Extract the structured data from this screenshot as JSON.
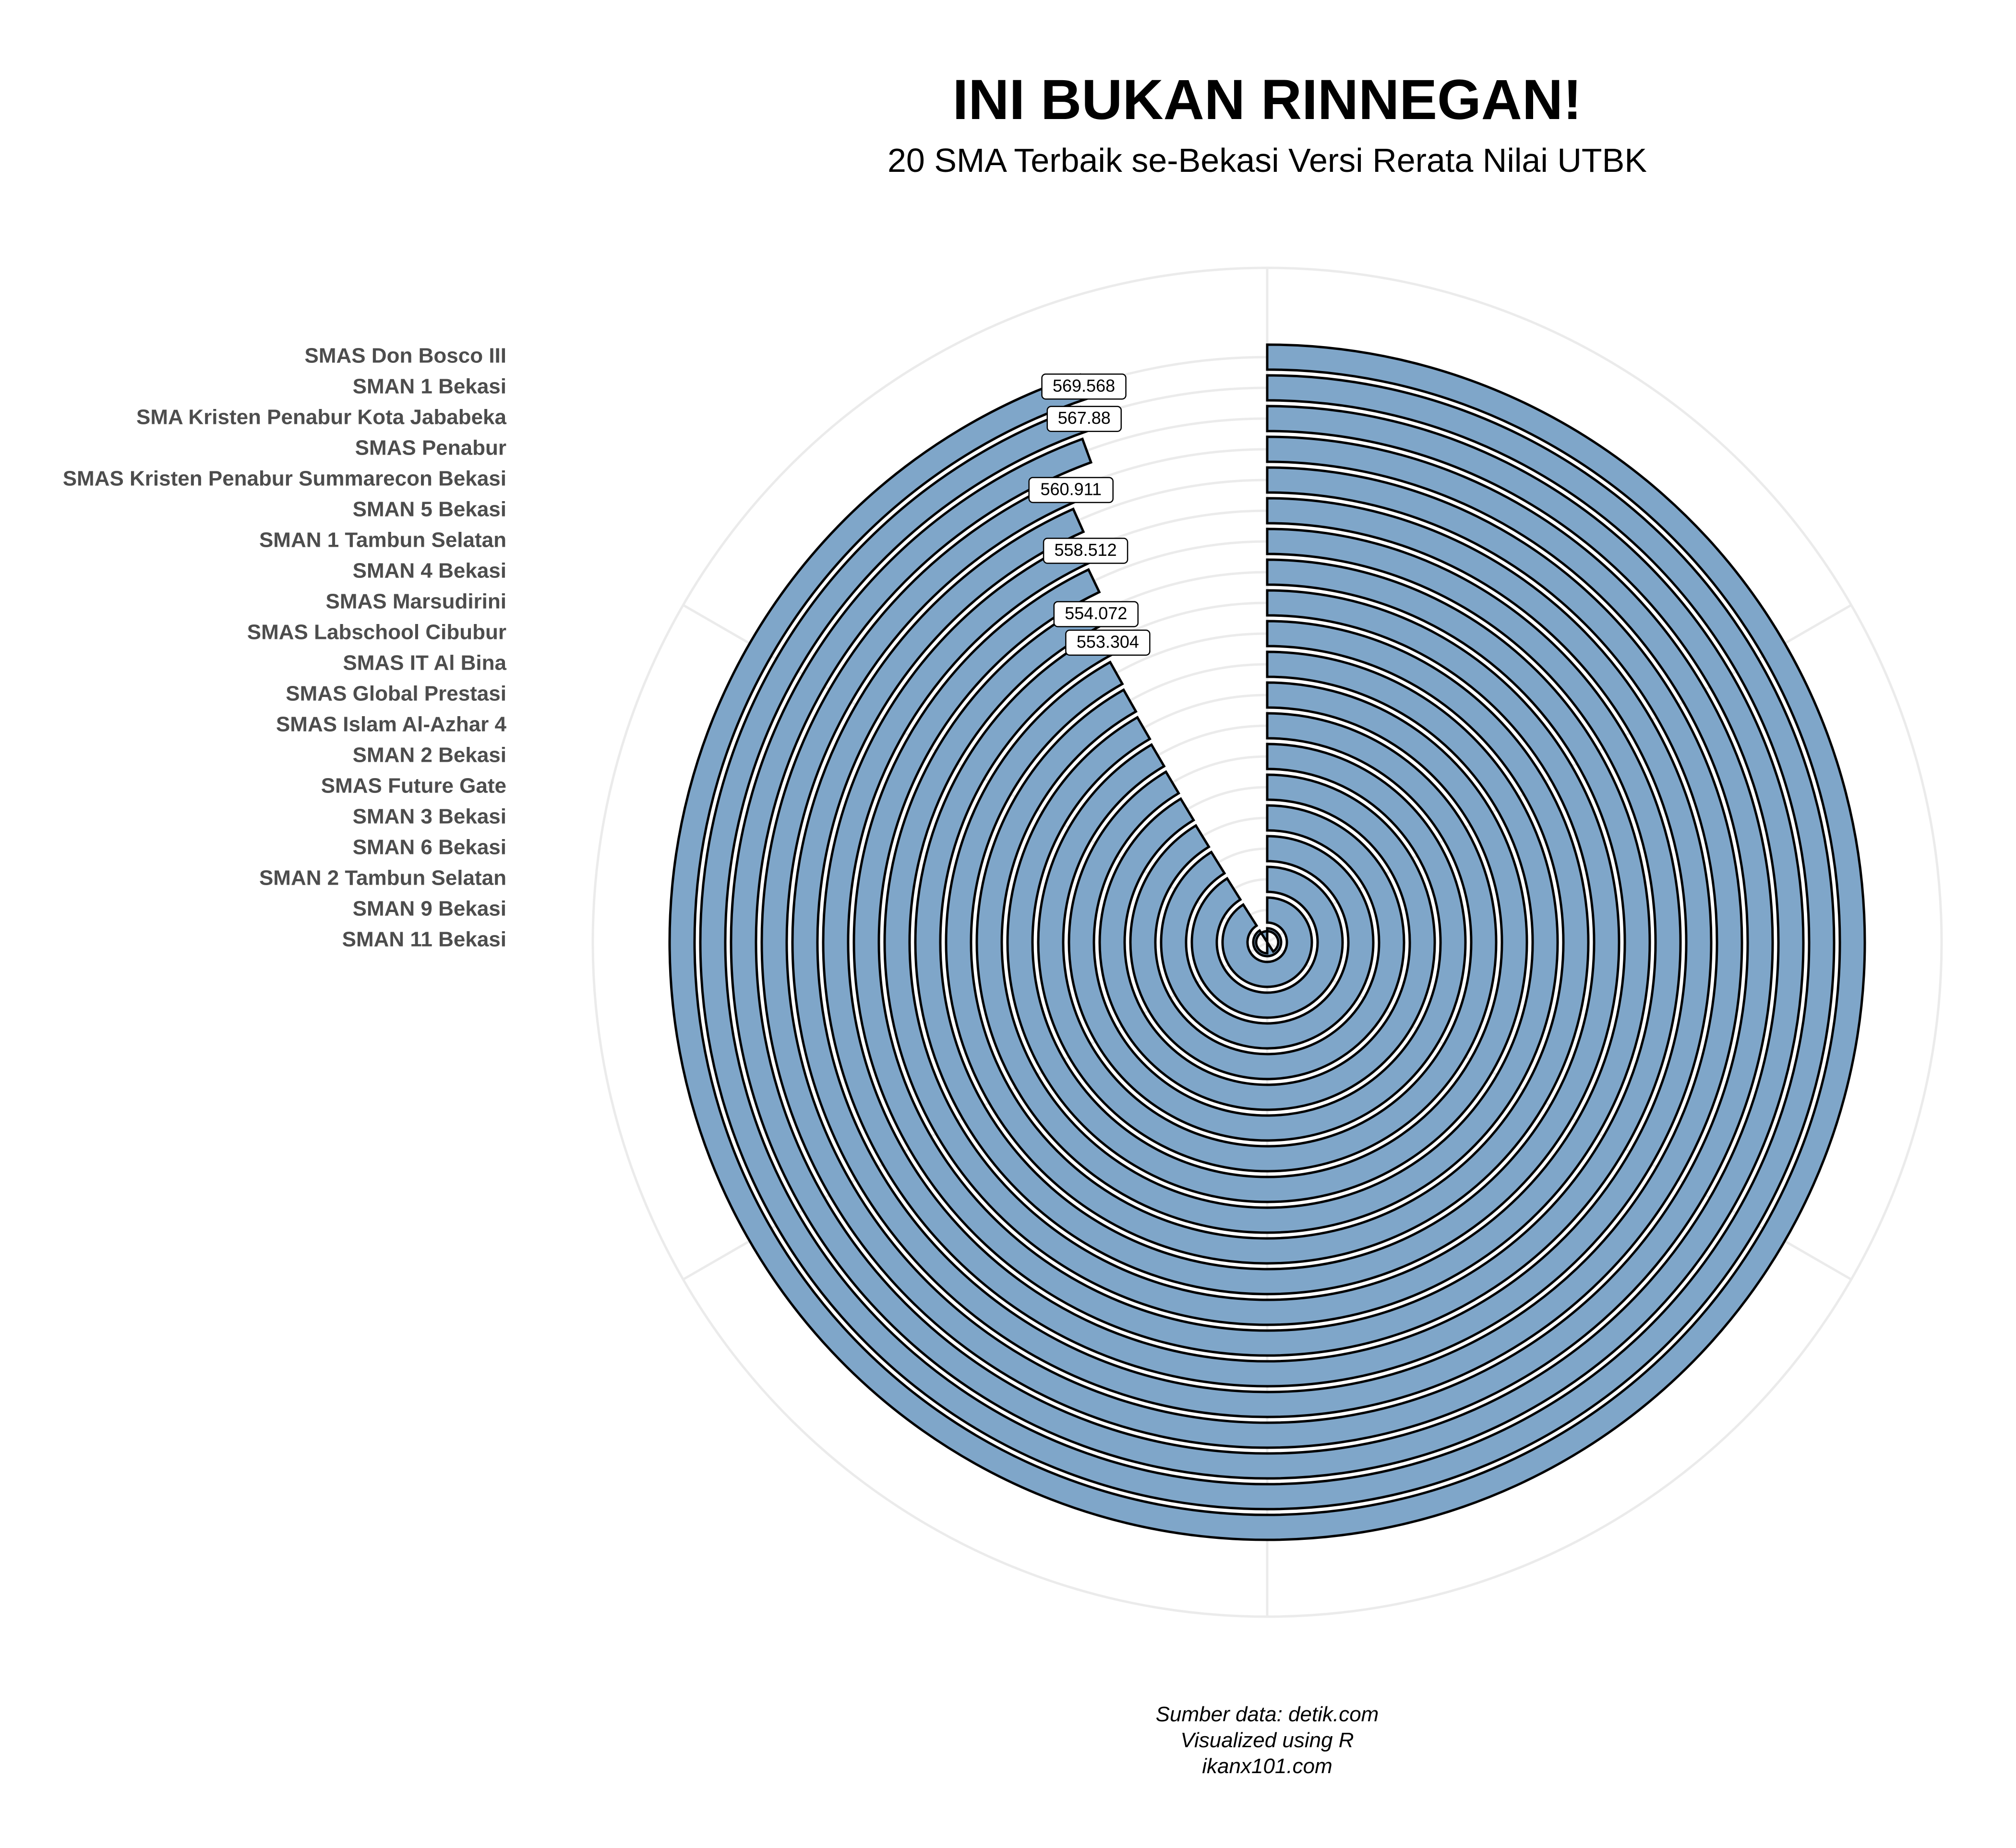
{
  "chart_data": {
    "type": "bar",
    "coord": "polar",
    "title": "INI BUKAN RINNEGAN!",
    "subtitle": "20 SMA Terbaik se-Bekasi Versi Rerata Nilai UTBK",
    "categories": [
      "SMAS Don Bosco III",
      "SMAN 1 Bekasi",
      "SMA Kristen Penabur Kota Jababeka",
      "SMAS Penabur",
      "SMAS Kristen Penabur Summarecon Bekasi",
      "SMAN 5 Bekasi",
      "SMAN 1 Tambun Selatan",
      "SMAN 4 Bekasi",
      "SMAS Marsudirini",
      "SMAS Labschool Cibubur",
      "SMAS IT Al Bina",
      "SMAS Global Prestasi",
      "SMAS Islam Al-Azhar 4",
      "SMAN 2 Bekasi",
      "SMAS Future Gate",
      "SMAN 3 Bekasi",
      "SMAN 6 Bekasi",
      "SMAN 2 Tambun Selatan",
      "SMAN 9 Bekasi",
      "SMAN 11 Bekasi"
    ],
    "values": [
      569.568,
      567.88,
      566.4,
      560.911,
      559.8,
      558.512,
      557.3,
      554.072,
      553.304,
      551.2,
      550.6,
      550.0,
      549.4,
      548.8,
      548.2,
      547.6,
      547.0,
      546.4,
      545.8,
      544.9
    ],
    "data_labels": [
      "569.568",
      "567.88",
      "",
      "560.911",
      "",
      "558.512",
      "",
      "554.072",
      "553.304",
      "",
      "",
      "",
      "",
      "",
      "",
      "",
      "",
      "",
      "",
      ""
    ],
    "angle_max": 600,
    "grid": true,
    "legend": "none",
    "bar_color": "#7fa6c9",
    "caption": [
      "Sumber data: detik.com",
      "Visualized using R",
      "ikanx101.com"
    ]
  }
}
